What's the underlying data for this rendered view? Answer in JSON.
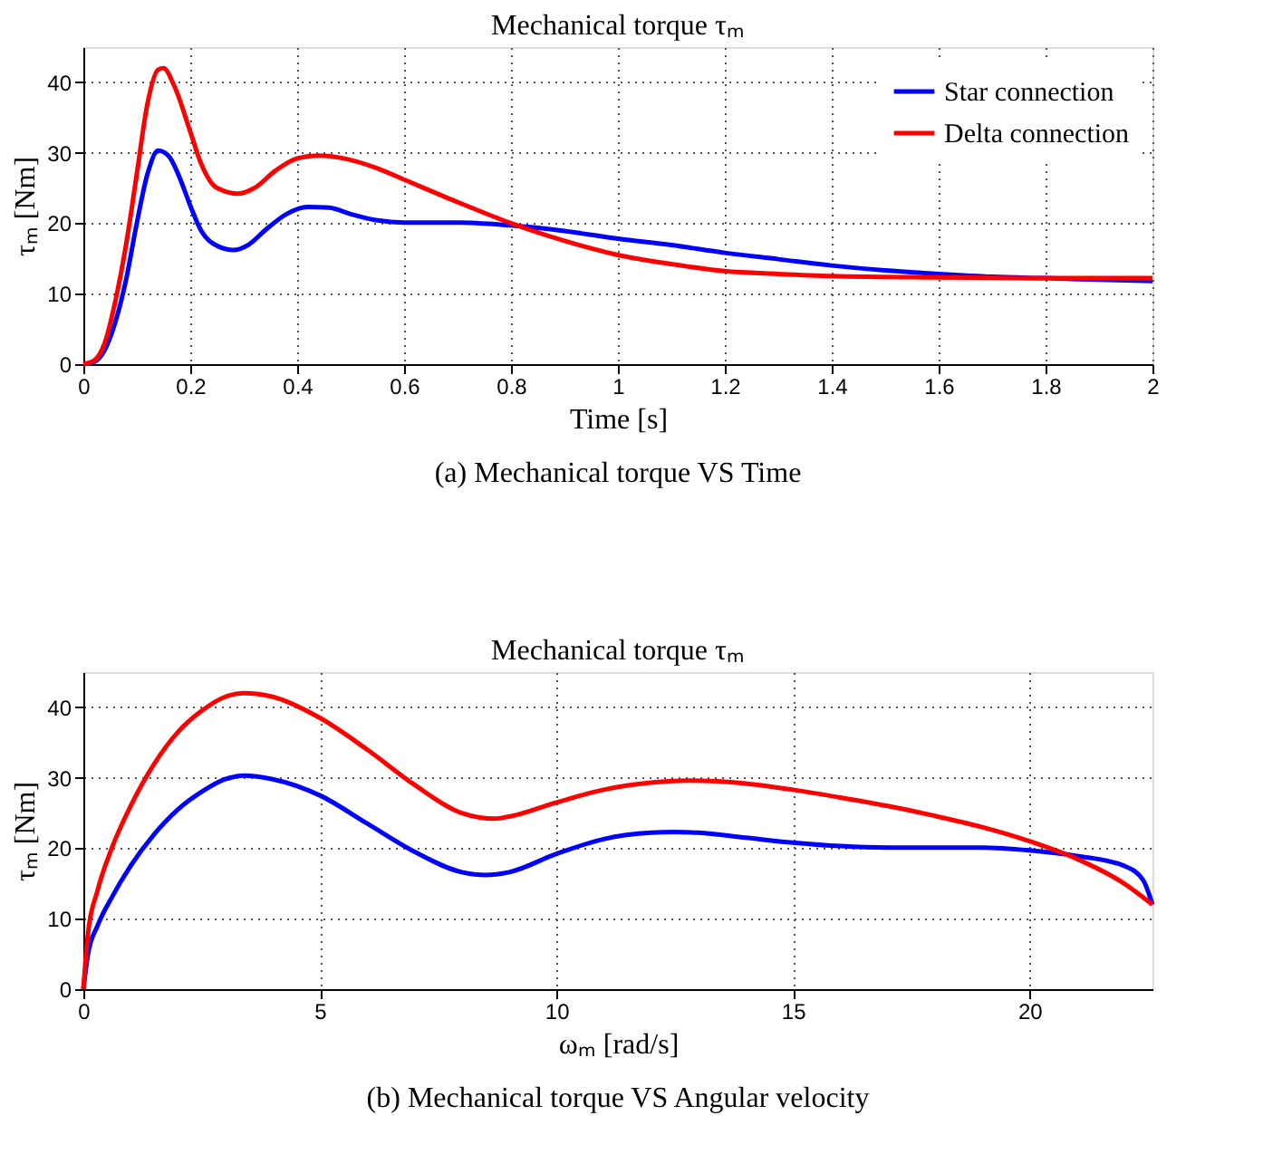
{
  "chart_data": [
    {
      "type": "line",
      "title": "Mechanical torque τₘ",
      "xlabel": "Time [s]",
      "ylabel": "τₘ [Nm]",
      "annotations": [
        "(a) Mechanical torque VS Time"
      ],
      "xlim": [
        0,
        2
      ],
      "ylim": [
        0,
        45
      ],
      "xticks": [
        0,
        0.2,
        0.4,
        0.6,
        0.8,
        1,
        1.2,
        1.4,
        1.6,
        1.8,
        2
      ],
      "yticks": [
        0,
        10,
        20,
        30,
        40
      ],
      "grid": true,
      "legend": "top right",
      "line_style": "solid",
      "marker": "none",
      "series": [
        {
          "name": "Star connection",
          "color": "#0000ff",
          "x": [
            0,
            0.02,
            0.04,
            0.06,
            0.08,
            0.1,
            0.12,
            0.14,
            0.16,
            0.18,
            0.2,
            0.22,
            0.25,
            0.28,
            0.31,
            0.34,
            0.38,
            0.42,
            0.46,
            0.5,
            0.55,
            0.6,
            0.7,
            0.8,
            0.9,
            1.0,
            1.1,
            1.2,
            1.3,
            1.4,
            1.5,
            1.6,
            1.7,
            1.8,
            1.9,
            2.0
          ],
          "values": [
            0,
            0.3,
            2,
            6,
            12,
            20,
            27,
            30.3,
            29.5,
            26.5,
            22.5,
            19,
            16.8,
            16.2,
            17,
            19,
            21.3,
            22.3,
            22.2,
            21.3,
            20.4,
            20.1,
            20.1,
            19.7,
            18.9,
            17.8,
            16.9,
            15.8,
            14.9,
            14,
            13.3,
            12.8,
            12.4,
            12.2,
            12.0,
            11.8
          ]
        },
        {
          "name": "Delta connection",
          "color": "#ff0000",
          "x": [
            0,
            0.02,
            0.04,
            0.06,
            0.08,
            0.1,
            0.12,
            0.14,
            0.15,
            0.17,
            0.2,
            0.22,
            0.25,
            0.29,
            0.32,
            0.36,
            0.4,
            0.44,
            0.48,
            0.55,
            0.6,
            0.7,
            0.8,
            0.9,
            1.0,
            1.1,
            1.2,
            1.3,
            1.4,
            1.6,
            1.8,
            2.0
          ],
          "values": [
            0,
            0.5,
            3,
            9,
            17,
            27,
            37,
            41.8,
            42,
            39.5,
            33,
            28.5,
            25,
            24.2,
            25,
            27.5,
            29.2,
            29.6,
            29.3,
            27.8,
            26.2,
            23,
            20,
            17.5,
            15.5,
            14.2,
            13.2,
            12.8,
            12.5,
            12.3,
            12.2,
            12.2
          ]
        }
      ]
    },
    {
      "type": "line",
      "title": "Mechanical torque τₘ",
      "xlabel": "ωₘ [rad/s]",
      "ylabel": "τₘ [Nm]",
      "annotations": [
        "(b) Mechanical torque VS Angular velocity"
      ],
      "xlim": [
        0,
        22.6
      ],
      "ylim": [
        0,
        45
      ],
      "xticks": [
        0,
        5,
        10,
        15,
        20
      ],
      "yticks": [
        0,
        10,
        20,
        30,
        40
      ],
      "grid": true,
      "legend": "top right",
      "line_style": "solid",
      "marker": "none",
      "series": [
        {
          "name": "Star connection",
          "color": "#0000ff",
          "x": [
            0,
            0.1,
            0.3,
            0.6,
            1,
            1.5,
            2,
            2.5,
            3,
            3.4,
            4,
            5,
            6,
            7,
            8,
            8.5,
            9,
            10,
            11,
            12,
            12.5,
            13,
            14,
            15,
            16,
            17,
            18,
            19,
            20,
            21,
            22,
            22.4,
            22.6
          ],
          "values": [
            0,
            5,
            9,
            13,
            17.5,
            22,
            25.5,
            28,
            29.8,
            30.3,
            29.8,
            27.5,
            23.5,
            19.5,
            16.6,
            16.2,
            16.6,
            19.2,
            21.3,
            22.2,
            22.3,
            22.2,
            21.5,
            20.8,
            20.3,
            20.1,
            20.1,
            20.1,
            19.7,
            18.9,
            17.5,
            15.5,
            12
          ]
        },
        {
          "name": "Delta connection",
          "color": "#ff0000",
          "x": [
            0,
            0.1,
            0.3,
            0.6,
            1,
            1.5,
            2,
            2.5,
            3,
            3.4,
            4,
            5,
            6,
            7,
            8,
            8.7,
            9,
            10,
            11,
            12,
            12.8,
            14,
            15,
            16,
            17,
            18,
            19,
            20,
            21,
            22,
            22.6
          ],
          "values": [
            0,
            8,
            14,
            20,
            26,
            32,
            36.5,
            39.5,
            41.5,
            42,
            41.5,
            38.5,
            34,
            29,
            25,
            24.2,
            24.5,
            26.5,
            28.3,
            29.3,
            29.6,
            29.2,
            28.3,
            27.2,
            26,
            24.6,
            23,
            21,
            18.5,
            15,
            12
          ]
        }
      ]
    }
  ]
}
